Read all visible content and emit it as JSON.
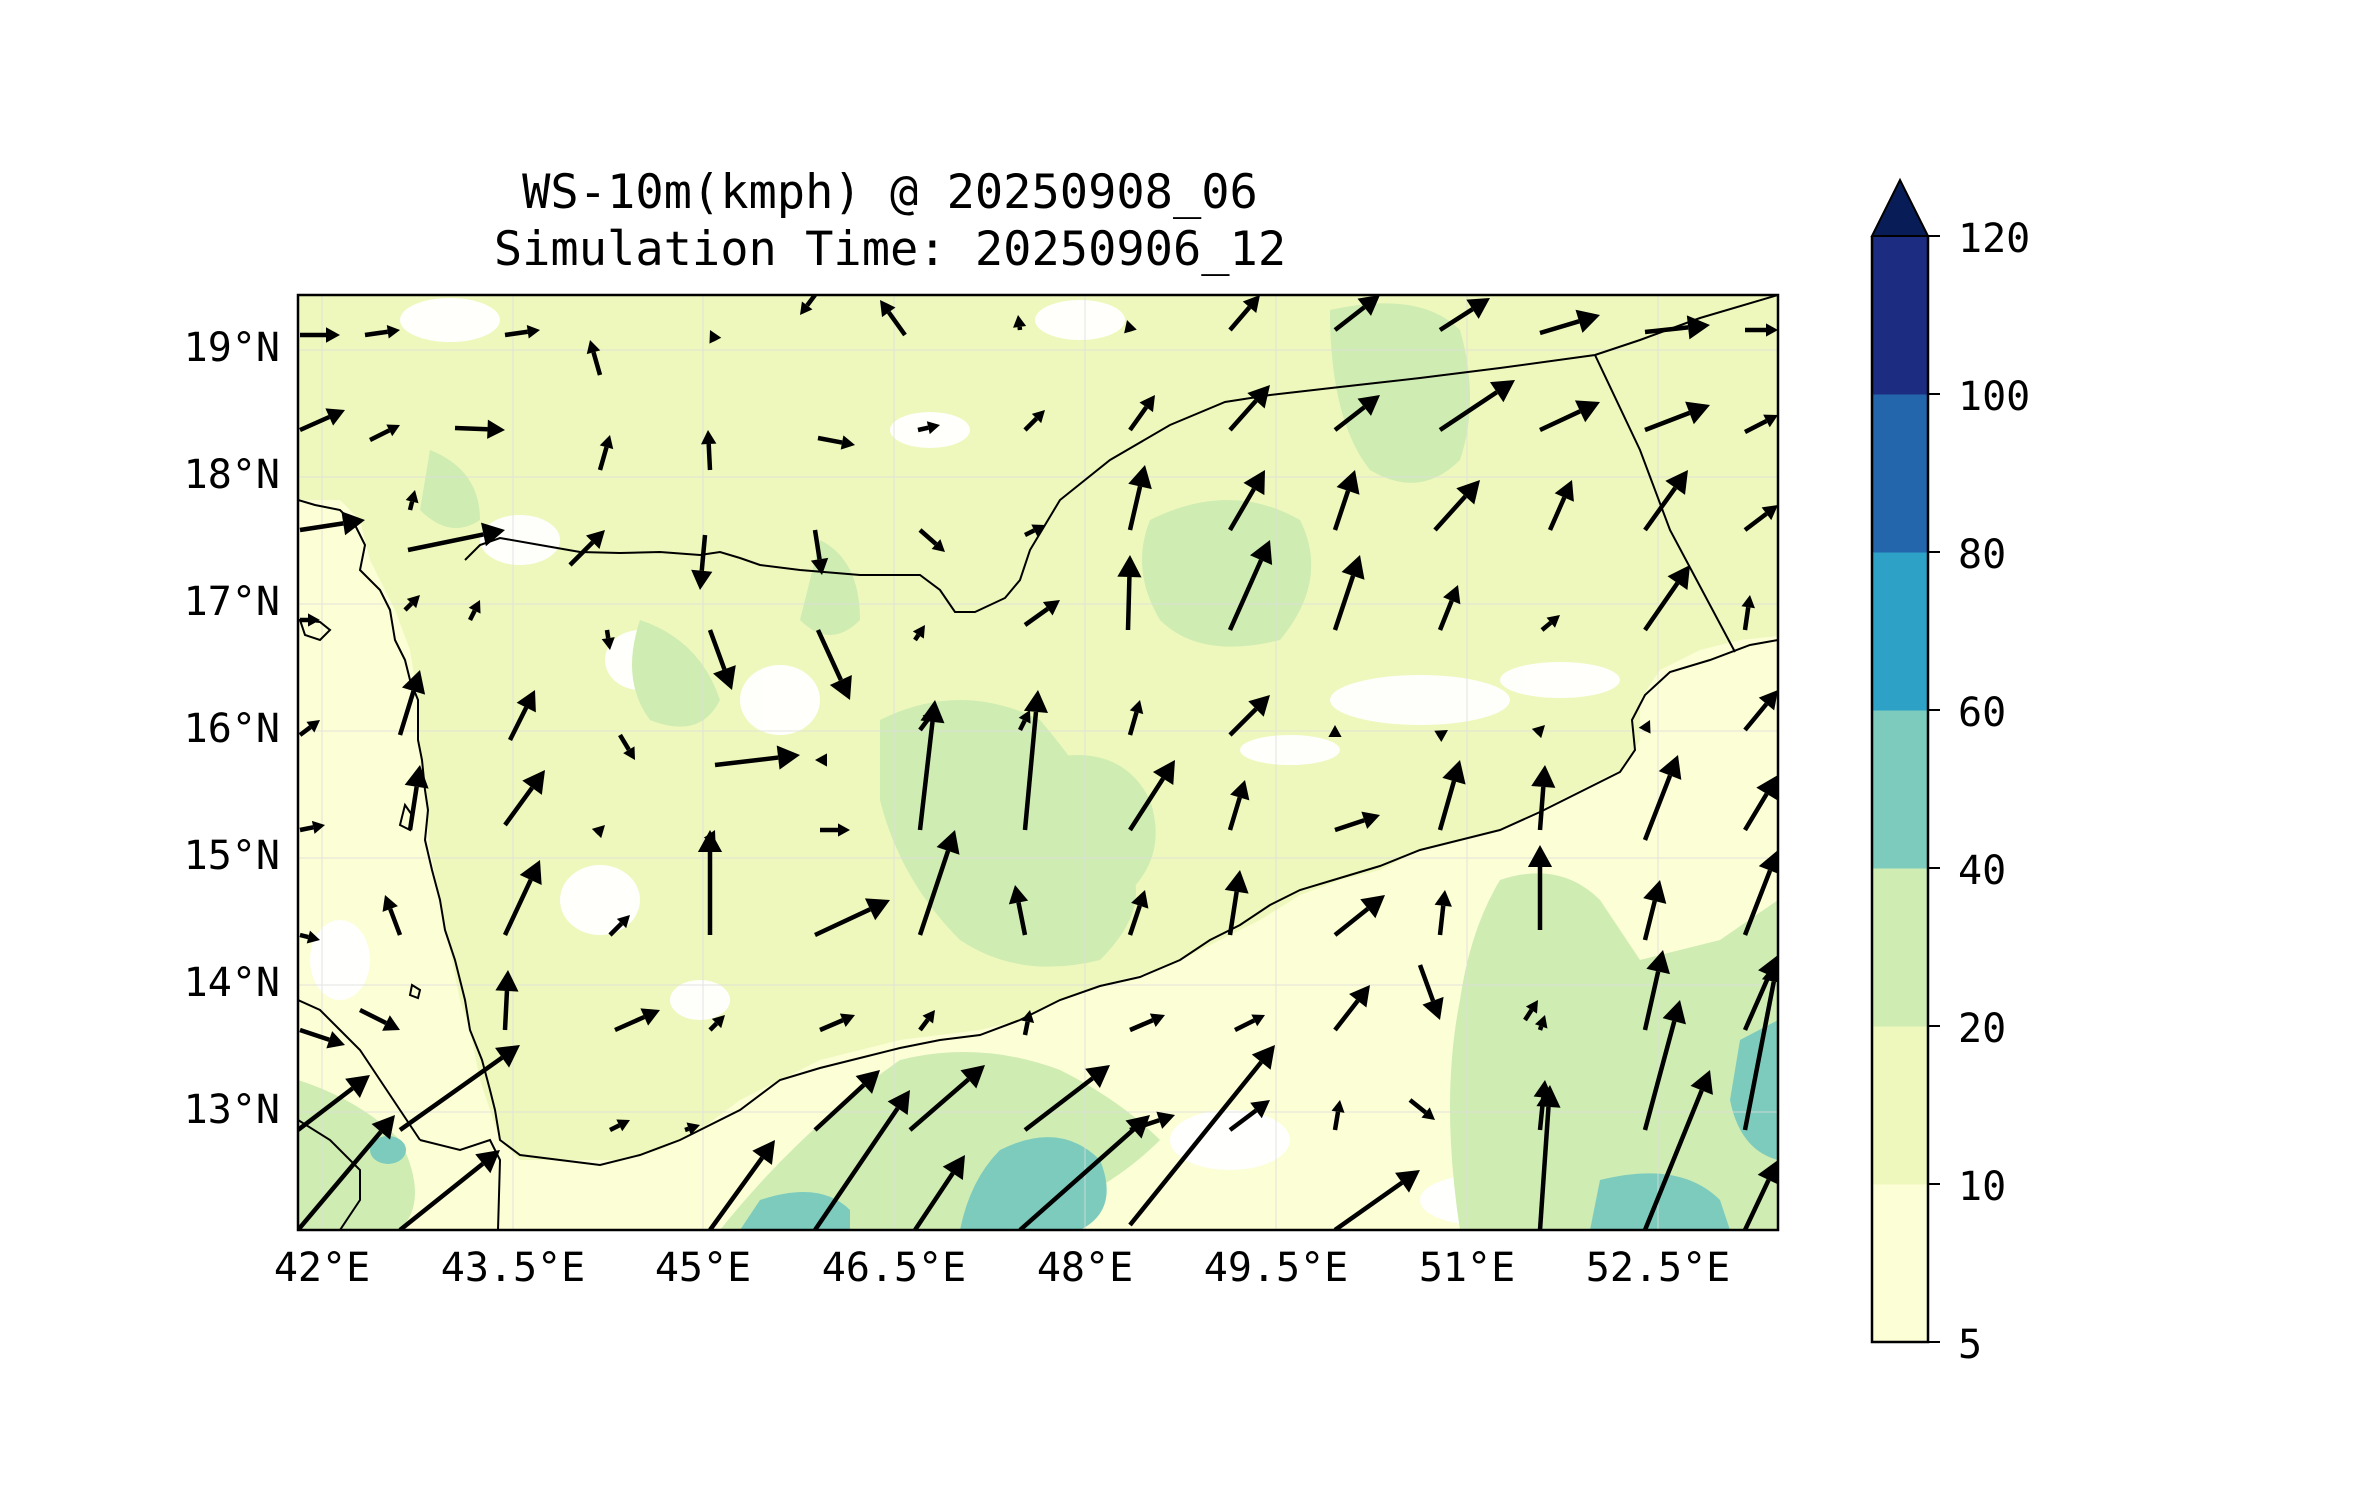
{
  "title": {
    "line1": "WS-10m(kmph) @ 20250908_06",
    "line2": "Simulation Time: 20250906_12"
  },
  "map": {
    "lat_ticks": [
      "19°N",
      "18°N",
      "17°N",
      "16°N",
      "15°N",
      "14°N",
      "13°N"
    ],
    "lon_ticks": [
      "42°E",
      "43.5°E",
      "45°E",
      "46.5°E",
      "48°E",
      "49.5°E",
      "51°E",
      "52.5°E"
    ],
    "extent": {
      "lon_min": 41.9,
      "lon_max": 53.6,
      "lat_min": 12.1,
      "lat_max": 19.5
    },
    "gridlines": true,
    "vectors": "wind arrows",
    "coastline_color": "#000000"
  },
  "colorbar": {
    "levels": [
      "5",
      "10",
      "20",
      "40",
      "60",
      "80",
      "100",
      "120"
    ],
    "colors": [
      "#fcfed6",
      "#eef8bc",
      "#cfecb3",
      "#7ccbbd",
      "#2ea2c6",
      "#2366ab",
      "#1c2c80",
      "#081d58"
    ],
    "extend": "max"
  }
}
